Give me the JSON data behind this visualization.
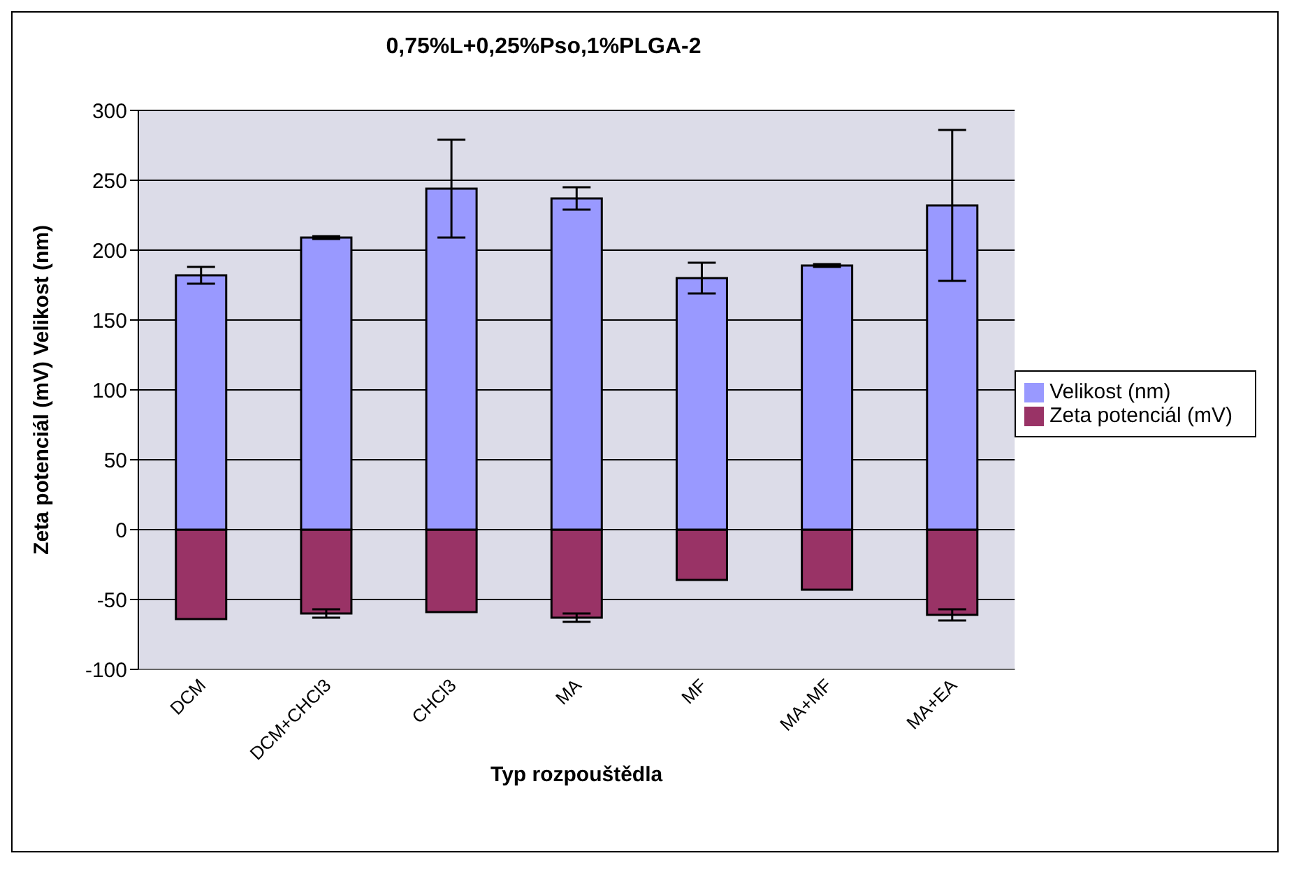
{
  "chart_data": {
    "type": "bar",
    "title": "0,75%L+0,25%Pso,1%PLGA-2",
    "xlabel": "Typ rozpouštědla",
    "ylabel": "Zeta potenciál (mV)   Velikost (nm)",
    "categories": [
      "DCM",
      "DCM+CHCl3",
      "CHCl3",
      "MA",
      "MF",
      "MA+MF",
      "MA+EA"
    ],
    "series": [
      {
        "name": "Zeta potenciál (mV)",
        "color": "#993366",
        "values": [
          -64,
          -60,
          -59,
          -63,
          -36,
          -43,
          -61
        ],
        "errors": [
          null,
          3,
          null,
          3,
          null,
          null,
          4
        ]
      },
      {
        "name": "Velikost (nm)",
        "color": "#9999ff",
        "values": [
          182,
          209,
          244,
          237,
          180,
          189,
          232
        ],
        "errors": [
          6,
          1,
          35,
          8,
          11,
          1,
          54
        ]
      }
    ],
    "stacked": true,
    "ylim": [
      -100,
      300
    ],
    "yticks": [
      -100,
      -50,
      0,
      50,
      100,
      150,
      200,
      250,
      300
    ],
    "grid": "y",
    "legend": "right"
  }
}
